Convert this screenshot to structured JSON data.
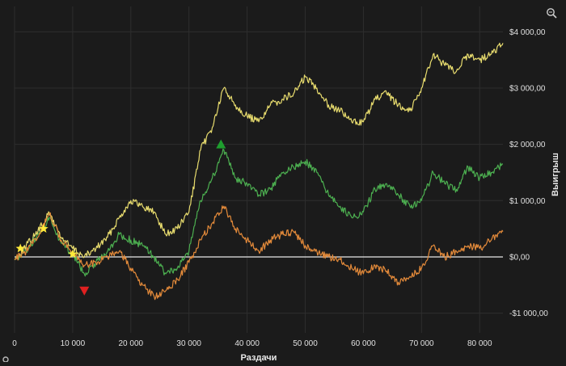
{
  "chart_data": {
    "type": "line",
    "title": "",
    "xlabel": "Раздачи",
    "ylabel": "Выигрыш",
    "xlim": [
      0,
      84000
    ],
    "ylim": [
      -1350,
      4450
    ],
    "grid": true,
    "x_ticks": [
      0,
      10000,
      20000,
      30000,
      40000,
      50000,
      60000,
      70000,
      80000
    ],
    "x_tick_labels": [
      "0",
      "10 000",
      "20 000",
      "30 000",
      "40 000",
      "50 000",
      "60 000",
      "70 000",
      "80 000"
    ],
    "y_ticks": [
      -1000,
      0,
      1000,
      2000,
      3000,
      4000
    ],
    "y_tick_labels": [
      "-$1 000,00",
      "$0,00",
      "$1 000,00",
      "$2 000,00",
      "$3 000,00",
      "$4 000,00"
    ],
    "series": [
      {
        "color": "#e8dc6e",
        "x": [
          0,
          2000,
          4000,
          6000,
          8000,
          10000,
          12000,
          14000,
          16000,
          18000,
          20000,
          22000,
          24000,
          26000,
          28000,
          30000,
          32000,
          34000,
          36000,
          38000,
          40000,
          42000,
          44000,
          46000,
          48000,
          50000,
          52000,
          54000,
          56000,
          58000,
          60000,
          62000,
          64000,
          66000,
          68000,
          70000,
          72000,
          74000,
          76000,
          78000,
          80000,
          82000,
          84000
        ],
        "y": [
          -50,
          200,
          450,
          780,
          350,
          150,
          0,
          150,
          350,
          700,
          1000,
          900,
          800,
          400,
          500,
          800,
          1900,
          2300,
          3000,
          2700,
          2500,
          2400,
          2700,
          2800,
          2900,
          3200,
          3000,
          2700,
          2600,
          2400,
          2400,
          2800,
          2900,
          2700,
          2600,
          3000,
          3600,
          3400,
          3300,
          3600,
          3500,
          3600,
          3800
        ]
      },
      {
        "color": "#4caf50",
        "x": [
          0,
          2000,
          4000,
          6000,
          8000,
          10000,
          12000,
          14000,
          16000,
          18000,
          20000,
          22000,
          24000,
          26000,
          28000,
          30000,
          32000,
          34000,
          36000,
          38000,
          40000,
          42000,
          44000,
          46000,
          48000,
          50000,
          52000,
          54000,
          56000,
          58000,
          60000,
          62000,
          64000,
          66000,
          68000,
          70000,
          72000,
          74000,
          76000,
          78000,
          80000,
          82000,
          84000
        ],
        "y": [
          -50,
          100,
          400,
          700,
          250,
          50,
          -300,
          -100,
          100,
          400,
          300,
          200,
          0,
          -300,
          -200,
          100,
          1000,
          1400,
          1900,
          1400,
          1300,
          1100,
          1200,
          1500,
          1600,
          1700,
          1500,
          1100,
          900,
          700,
          800,
          1200,
          1300,
          1100,
          900,
          1000,
          1500,
          1300,
          1200,
          1600,
          1400,
          1500,
          1650
        ]
      },
      {
        "color": "#e38a3a",
        "x": [
          0,
          2000,
          4000,
          6000,
          8000,
          10000,
          12000,
          14000,
          16000,
          18000,
          20000,
          22000,
          24000,
          26000,
          28000,
          30000,
          32000,
          34000,
          36000,
          38000,
          40000,
          42000,
          44000,
          46000,
          48000,
          50000,
          52000,
          54000,
          56000,
          58000,
          60000,
          62000,
          64000,
          66000,
          68000,
          70000,
          72000,
          74000,
          76000,
          78000,
          80000,
          82000,
          84000
        ],
        "y": [
          -50,
          100,
          350,
          780,
          300,
          100,
          -150,
          -100,
          0,
          100,
          -200,
          -500,
          -700,
          -600,
          -400,
          -100,
          300,
          600,
          900,
          500,
          300,
          100,
          300,
          400,
          450,
          200,
          100,
          0,
          -50,
          -200,
          -300,
          -150,
          -250,
          -450,
          -350,
          -200,
          200,
          0,
          100,
          200,
          150,
          300,
          450
        ]
      }
    ],
    "markers": [
      {
        "kind": "star",
        "x": 1000,
        "y": 150,
        "color": "#ffeb3b"
      },
      {
        "kind": "star",
        "x": 5000,
        "y": 500,
        "color": "#ffeb3b"
      },
      {
        "kind": "star",
        "x": 10000,
        "y": 50,
        "color": "#ffeb3b"
      },
      {
        "kind": "triangle-up",
        "x": 35500,
        "y": 2000,
        "color": "#1e9e2e"
      },
      {
        "kind": "triangle-down",
        "x": 12000,
        "y": -600,
        "color": "#e02020"
      }
    ],
    "zero_line_color": "#e8e8e8",
    "grid_color": "#2e2e2e"
  },
  "toolbar": {
    "zoom_icon": "magnifier-zoom-icon"
  }
}
